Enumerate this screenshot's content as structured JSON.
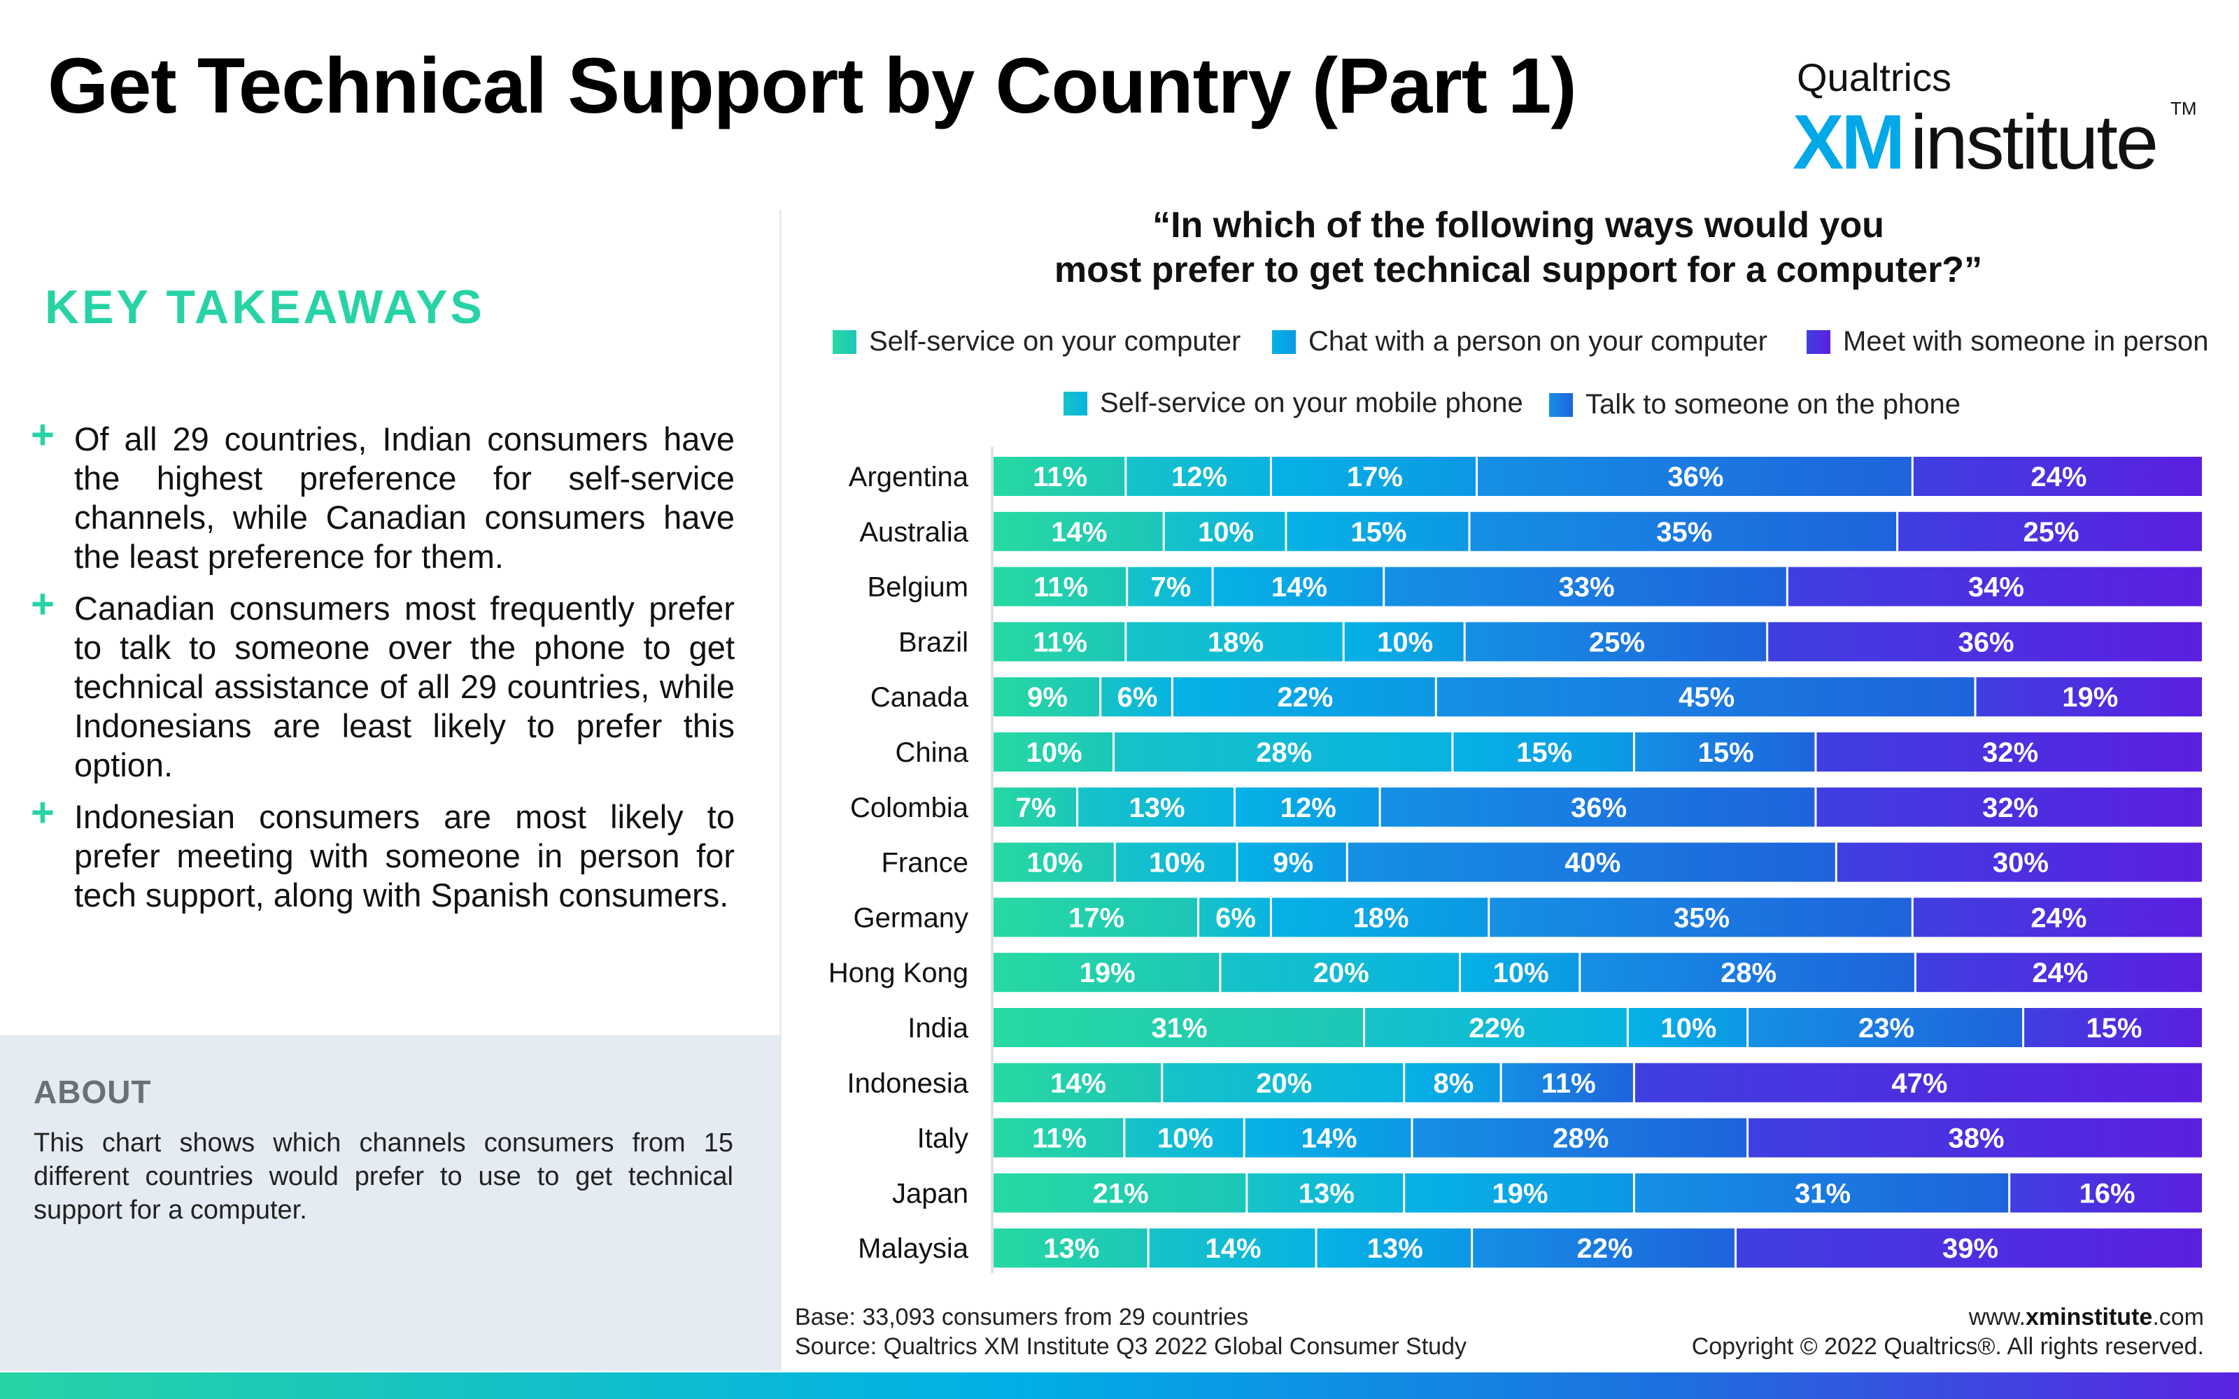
{
  "header": {
    "title": "Get Technical Support by Country (Part 1)",
    "logo": {
      "brand": "Qualtrics",
      "xm": "XM",
      "institute": "institute",
      "tm": "TM"
    }
  },
  "takeaways": {
    "title": "KEY TAKEAWAYS",
    "items": [
      "Of all 29 countries, Indian consumers have the highest preference for self-service channels, while Canadian consumers have the least preference for them.",
      "Canadian consumers most frequently prefer to talk to someone over the phone to get technical assistance of all 29 countries, while Indonesians are least likely to prefer this option.",
      "Indonesian consumers are most likely to prefer meeting with someone in person for tech support, along with Spanish consumers."
    ]
  },
  "about": {
    "title": "ABOUT",
    "text": "This chart shows which channels consumers from 15 different countries would prefer to use to get technical support for a computer."
  },
  "footer": {
    "base": "Base: 33,093 consumers from 29 countries",
    "source": "Source: Qualtrics XM Institute Q3 2022 Global Consumer Study",
    "website_prefix": "www.",
    "website_bold": "xminstitute",
    "website_suffix": ".com",
    "copyright": "Copyright © 2022 Qualtrics®. All rights reserved."
  },
  "chart_data": {
    "type": "bar",
    "orientation": "horizontal",
    "stacked": true,
    "title": "“In which of the following ways would you most prefer to get technical support for a computer?”",
    "title_line1": "“In which of the following ways would you",
    "title_line2": "most prefer to get technical support for a computer?”",
    "xlabel": "",
    "ylabel": "",
    "xlim": [
      0,
      100
    ],
    "grid": false,
    "legend_position": "top",
    "categories": [
      "Argentina",
      "Australia",
      "Belgium",
      "Brazil",
      "Canada",
      "China",
      "Colombia",
      "France",
      "Germany",
      "Hong Kong",
      "India",
      "Indonesia",
      "Italy",
      "Japan",
      "Malaysia"
    ],
    "series": [
      {
        "name": "Self-service on your computer",
        "color_start": "#27d9a2",
        "color_end": "#1cc6b8",
        "values": [
          11,
          14,
          11,
          11,
          9,
          10,
          7,
          10,
          17,
          19,
          31,
          14,
          11,
          21,
          13
        ]
      },
      {
        "name": "Self-service on your mobile phone",
        "color_start": "#16c3c8",
        "color_end": "#08b3e0",
        "values": [
          12,
          10,
          7,
          18,
          6,
          28,
          13,
          10,
          6,
          20,
          22,
          20,
          10,
          13,
          14
        ]
      },
      {
        "name": "Chat with a person on your computer",
        "color_start": "#05b2e6",
        "color_end": "#0c98e4",
        "values": [
          17,
          15,
          14,
          10,
          22,
          15,
          12,
          9,
          18,
          10,
          10,
          8,
          14,
          19,
          13
        ]
      },
      {
        "name": "Talk to someone on the phone",
        "color_start": "#1590e4",
        "color_end": "#1f63dc",
        "values": [
          36,
          35,
          33,
          25,
          45,
          15,
          36,
          40,
          35,
          28,
          23,
          11,
          28,
          31,
          22
        ]
      },
      {
        "name": "Meet with someone in person",
        "color_start": "#3f3fe0",
        "color_end": "#5b1fe0",
        "values": [
          24,
          25,
          34,
          36,
          19,
          32,
          32,
          30,
          24,
          24,
          15,
          47,
          38,
          16,
          39
        ]
      }
    ],
    "legend_order": [
      "Self-service on your computer",
      "Chat with a person on your computer",
      "Meet with someone in person",
      "Self-service on your mobile phone",
      "Talk to someone on the phone"
    ],
    "value_suffix": "%"
  }
}
